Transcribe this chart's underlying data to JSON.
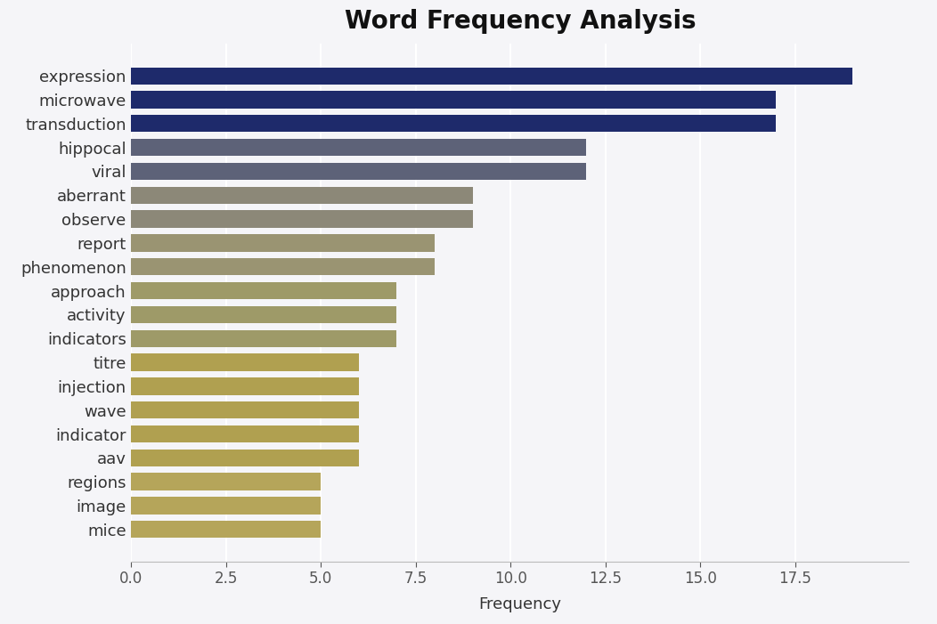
{
  "title": "Word Frequency Analysis",
  "xlabel": "Frequency",
  "categories": [
    "mice",
    "image",
    "regions",
    "aav",
    "indicator",
    "wave",
    "injection",
    "titre",
    "indicators",
    "activity",
    "approach",
    "phenomenon",
    "report",
    "observe",
    "aberrant",
    "viral",
    "hippocal",
    "transduction",
    "microwave",
    "expression"
  ],
  "values": [
    5,
    5,
    5,
    6,
    6,
    6,
    6,
    6,
    7,
    7,
    7,
    8,
    8,
    9,
    9,
    12,
    12,
    17,
    17,
    19
  ],
  "bar_colors": [
    "#b5a55a",
    "#b5a55a",
    "#b5a55a",
    "#b0a050",
    "#b0a050",
    "#b0a050",
    "#b0a050",
    "#b0a050",
    "#9e9a68",
    "#9e9a68",
    "#9e9a68",
    "#9a9472",
    "#9a9472",
    "#8c8878",
    "#8c8878",
    "#5d6278",
    "#5d6278",
    "#1e2a6b",
    "#1e2a6b",
    "#1e2a6b"
  ],
  "xlim": [
    0,
    20.5
  ],
  "xticks": [
    0.0,
    2.5,
    5.0,
    7.5,
    10.0,
    12.5,
    15.0,
    17.5
  ],
  "background_color": "#f5f5f8",
  "plot_bg_color": "#f5f5f8",
  "title_fontsize": 20,
  "label_fontsize": 13,
  "tick_fontsize": 12,
  "bar_height": 0.72
}
